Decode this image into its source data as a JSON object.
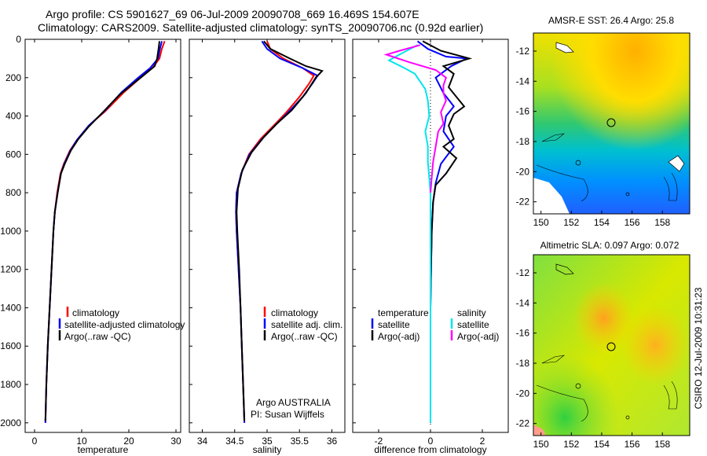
{
  "header": {
    "line1": "Argo profile: CS 5901627_69 06-Jul-2009 20090708_669 16.469S 154.607E",
    "line2": "Climatology: CARS2009. Satellite-adjusted climatology: synTS_20090706.nc (0.92d earlier)"
  },
  "side_label": "CSIRO 12-Jul-2009 10:31:23",
  "colors": {
    "red": "#ff0000",
    "blue": "#0000ff",
    "black": "#000000",
    "cyan": "#00e5ee",
    "magenta": "#ff00ff"
  },
  "chart_data": [
    {
      "type": "line",
      "name": "temperature-profile",
      "xlabel": "temperature",
      "xlim": [
        -2,
        31
      ],
      "ylim": [
        2050,
        0
      ],
      "xticks": [
        "0",
        "10",
        "20",
        "30"
      ],
      "yticks": [
        "0",
        "200",
        "400",
        "600",
        "800",
        "1000",
        "1200",
        "1400",
        "1600",
        "1800",
        "2000"
      ],
      "legend": {
        "position": "lower-right",
        "entries": [
          "climatology",
          "satellite-adjusted climatology",
          "Argo(..raw -QC)"
        ]
      },
      "series": [
        {
          "name": "climatology",
          "color": "red",
          "points": [
            [
              27.6,
              10
            ],
            [
              27.0,
              50
            ],
            [
              26.5,
              100
            ],
            [
              25.0,
              150
            ],
            [
              22.5,
              200
            ],
            [
              19.0,
              275
            ],
            [
              15.0,
              375
            ],
            [
              11.5,
              450
            ],
            [
              9.0,
              525
            ],
            [
              7.5,
              580
            ],
            [
              6.2,
              650
            ],
            [
              5.5,
              700
            ],
            [
              4.8,
              800
            ],
            [
              4.3,
              900
            ],
            [
              4.0,
              1000
            ],
            [
              3.6,
              1200
            ],
            [
              3.2,
              1400
            ],
            [
              2.8,
              1600
            ],
            [
              2.5,
              1800
            ],
            [
              2.3,
              2000
            ]
          ]
        },
        {
          "name": "satellite-adjusted climatology",
          "color": "blue",
          "points": [
            [
              27.0,
              10
            ],
            [
              26.6,
              50
            ],
            [
              26.2,
              100
            ],
            [
              24.5,
              150
            ],
            [
              22.0,
              200
            ],
            [
              18.5,
              275
            ],
            [
              14.8,
              375
            ],
            [
              11.5,
              450
            ],
            [
              9.0,
              525
            ],
            [
              7.6,
              580
            ],
            [
              6.3,
              650
            ],
            [
              5.6,
              700
            ],
            [
              4.9,
              800
            ],
            [
              4.3,
              900
            ],
            [
              4.0,
              1000
            ],
            [
              3.6,
              1200
            ],
            [
              3.2,
              1400
            ],
            [
              2.8,
              1600
            ],
            [
              2.5,
              1800
            ],
            [
              2.3,
              2000
            ]
          ]
        },
        {
          "name": "Argo(..raw -QC)",
          "color": "black",
          "points": [
            [
              26.5,
              10
            ],
            [
              26.3,
              50
            ],
            [
              26.0,
              100
            ],
            [
              25.5,
              140
            ],
            [
              22.5,
              200
            ],
            [
              18.0,
              290
            ],
            [
              14.5,
              380
            ],
            [
              11.5,
              455
            ],
            [
              9.3,
              520
            ],
            [
              7.7,
              580
            ],
            [
              6.4,
              650
            ],
            [
              5.6,
              700
            ],
            [
              4.9,
              800
            ],
            [
              4.3,
              900
            ],
            [
              4.0,
              1000
            ],
            [
              3.6,
              1200
            ],
            [
              3.2,
              1400
            ],
            [
              2.8,
              1600
            ],
            [
              2.5,
              1800
            ],
            [
              2.3,
              1990
            ]
          ]
        }
      ]
    },
    {
      "type": "line",
      "name": "salinity-profile",
      "xlabel": "salinity",
      "xlim": [
        33.8,
        36.2
      ],
      "ylim": [
        2050,
        0
      ],
      "xticks": [
        "34",
        "34.5",
        "35",
        "35.5",
        "36"
      ],
      "annotation": [
        "Argo AUSTRALIA",
        "PI: Susan Wijffels"
      ],
      "legend": {
        "position": "lower-right",
        "entries": [
          "climatology",
          "satellite adj. clim.",
          "Argo(..raw -QC)"
        ]
      },
      "series": [
        {
          "name": "climatology",
          "color": "red",
          "points": [
            [
              35.0,
              10
            ],
            [
              35.05,
              50
            ],
            [
              35.25,
              100
            ],
            [
              35.55,
              150
            ],
            [
              35.72,
              190
            ],
            [
              35.65,
              230
            ],
            [
              35.5,
              300
            ],
            [
              35.3,
              380
            ],
            [
              35.1,
              450
            ],
            [
              34.9,
              520
            ],
            [
              34.72,
              600
            ],
            [
              34.6,
              700
            ],
            [
              34.53,
              800
            ],
            [
              34.52,
              900
            ],
            [
              34.53,
              1000
            ],
            [
              34.56,
              1200
            ],
            [
              34.59,
              1400
            ],
            [
              34.61,
              1600
            ],
            [
              34.63,
              1800
            ],
            [
              34.65,
              2000
            ]
          ]
        },
        {
          "name": "satellite adj. clim.",
          "color": "blue",
          "points": [
            [
              34.92,
              10
            ],
            [
              35.0,
              50
            ],
            [
              35.2,
              100
            ],
            [
              35.55,
              150
            ],
            [
              35.78,
              190
            ],
            [
              35.7,
              230
            ],
            [
              35.55,
              300
            ],
            [
              35.33,
              380
            ],
            [
              35.12,
              450
            ],
            [
              34.92,
              520
            ],
            [
              34.73,
              600
            ],
            [
              34.6,
              700
            ],
            [
              34.53,
              800
            ],
            [
              34.52,
              900
            ],
            [
              34.53,
              1000
            ],
            [
              34.56,
              1200
            ],
            [
              34.59,
              1400
            ],
            [
              34.61,
              1600
            ],
            [
              34.63,
              1800
            ],
            [
              34.65,
              2000
            ]
          ]
        },
        {
          "name": "Argo(..raw -QC)",
          "color": "black",
          "points": [
            [
              34.95,
              10
            ],
            [
              35.05,
              50
            ],
            [
              35.35,
              100
            ],
            [
              35.6,
              140
            ],
            [
              35.85,
              165
            ],
            [
              35.75,
              200
            ],
            [
              35.6,
              280
            ],
            [
              35.38,
              370
            ],
            [
              35.15,
              440
            ],
            [
              34.95,
              510
            ],
            [
              34.76,
              590
            ],
            [
              34.62,
              680
            ],
            [
              34.55,
              780
            ],
            [
              34.53,
              900
            ],
            [
              34.54,
              1000
            ],
            [
              34.57,
              1200
            ],
            [
              34.59,
              1400
            ],
            [
              34.61,
              1600
            ],
            [
              34.63,
              1800
            ],
            [
              34.65,
              1990
            ]
          ]
        }
      ]
    },
    {
      "type": "line",
      "name": "difference-from-climatology",
      "xlabel": "difference from climatology",
      "xlim": [
        -3,
        3
      ],
      "ylim": [
        2050,
        0
      ],
      "xticks": [
        "-2",
        "0",
        "2"
      ],
      "legend": {
        "position": "lower-center",
        "entries": [
          "temperature",
          "satellite",
          "Argo(-adj)",
          "salinity",
          "satellite",
          "Argo(-adj)"
        ]
      },
      "series": [
        {
          "name": "temperature satellite",
          "color": "blue",
          "points": [
            [
              -0.5,
              10
            ],
            [
              -0.1,
              50
            ],
            [
              0.6,
              90
            ],
            [
              1.4,
              100
            ],
            [
              0.8,
              140
            ],
            [
              0.2,
              200
            ],
            [
              0.5,
              280
            ],
            [
              0.9,
              350
            ],
            [
              0.6,
              400
            ],
            [
              0.5,
              480
            ],
            [
              0.9,
              560
            ],
            [
              0.4,
              650
            ],
            [
              0.2,
              750
            ],
            [
              0.1,
              850
            ],
            [
              0.05,
              1000
            ],
            [
              0.02,
              1200
            ],
            [
              0.0,
              1400
            ],
            [
              0.0,
              1600
            ],
            [
              0.0,
              1800
            ],
            [
              0.0,
              2000
            ]
          ]
        },
        {
          "name": "temperature Argo(-adj)",
          "color": "black",
          "points": [
            [
              -0.3,
              10
            ],
            [
              0.4,
              60
            ],
            [
              1.5,
              100
            ],
            [
              0.5,
              140
            ],
            [
              0.9,
              180
            ],
            [
              0.7,
              250
            ],
            [
              1.0,
              300
            ],
            [
              1.3,
              350
            ],
            [
              0.9,
              390
            ],
            [
              0.7,
              450
            ],
            [
              0.9,
              520
            ],
            [
              0.5,
              560
            ],
            [
              1.0,
              620
            ],
            [
              0.6,
              700
            ],
            [
              0.2,
              760
            ],
            [
              0.1,
              850
            ],
            [
              0.05,
              1000
            ],
            [
              0.02,
              1200
            ],
            [
              0.0,
              1400
            ],
            [
              0.0,
              1600
            ],
            [
              0.0,
              1800
            ],
            [
              0.0,
              2000
            ]
          ]
        },
        {
          "name": "salinity satellite",
          "color": "cyan",
          "points": [
            [
              -0.5,
              30
            ],
            [
              -1.2,
              80
            ],
            [
              -1.6,
              110
            ],
            [
              -1.0,
              150
            ],
            [
              -0.6,
              180
            ],
            [
              -0.4,
              220
            ],
            [
              -0.2,
              260
            ],
            [
              -0.1,
              320
            ],
            [
              -0.05,
              400
            ],
            [
              -0.2,
              480
            ],
            [
              -0.1,
              560
            ],
            [
              -0.1,
              640
            ],
            [
              -0.05,
              720
            ],
            [
              0.0,
              800
            ],
            [
              0.0,
              1000
            ],
            [
              0.0,
              1200
            ],
            [
              0.0,
              1400
            ],
            [
              0.0,
              1600
            ],
            [
              0.0,
              1800
            ],
            [
              0.0,
              2000
            ]
          ]
        },
        {
          "name": "salinity Argo(-adj)",
          "color": "magenta",
          "points": [
            [
              -0.4,
              30
            ],
            [
              -1.2,
              60
            ],
            [
              -1.7,
              80
            ],
            [
              -0.8,
              120
            ],
            [
              0.2,
              160
            ],
            [
              0.6,
              200
            ],
            [
              0.5,
              240
            ],
            [
              0.5,
              280
            ],
            [
              0.6,
              320
            ],
            [
              0.4,
              380
            ],
            [
              0.5,
              440
            ],
            [
              0.3,
              480
            ],
            [
              0.2,
              560
            ],
            [
              0.1,
              640
            ],
            [
              0.05,
              720
            ],
            [
              0.0,
              800
            ]
          ]
        }
      ]
    },
    {
      "type": "heatmap",
      "name": "amsr-e-sst-map",
      "title": "AMSR-E SST: 26.4 Argo: 25.8",
      "xticks": [
        "150",
        "152",
        "154",
        "156",
        "158"
      ],
      "yticks": [
        "-12",
        "-14",
        "-16",
        "-18",
        "-20",
        "-22"
      ],
      "xlim": [
        149.5,
        159.8
      ],
      "ylim": [
        -22.8,
        -10.8
      ],
      "argo_position": [
        154.607,
        -16.469
      ]
    },
    {
      "type": "heatmap",
      "name": "altimetric-sla-map",
      "title": "Altimetric SLA: 0.097 Argo: 0.072",
      "xticks": [
        "150",
        "152",
        "154",
        "156",
        "158"
      ],
      "yticks": [
        "-12",
        "-14",
        "-16",
        "-18",
        "-20",
        "-22"
      ],
      "xlim": [
        149.5,
        159.8
      ],
      "ylim": [
        -22.8,
        -10.8
      ],
      "argo_position": [
        154.607,
        -16.469
      ]
    }
  ]
}
